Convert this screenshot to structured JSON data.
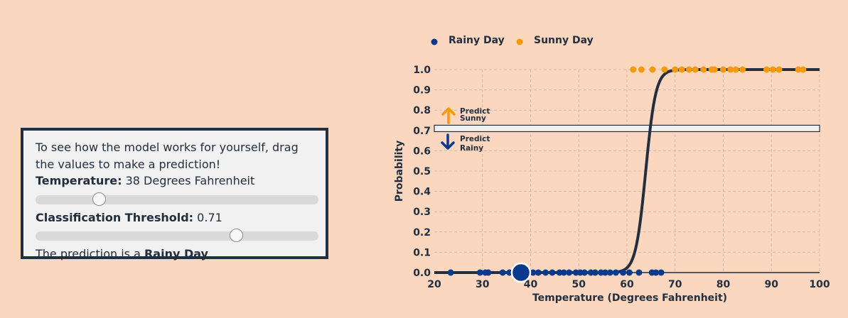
{
  "panel": {
    "intro": "To see how the model works for yourself, drag the values to make a prediction!",
    "temperature_label": "Temperature:",
    "temperature_value": "38 Degrees Fahrenheit",
    "temperature_slider": {
      "min": 20,
      "max": 100,
      "value": 38
    },
    "threshold_label": "Classification Threshold:",
    "threshold_value": "0.71",
    "threshold_slider": {
      "min": 0,
      "max": 1,
      "value": 0.71
    },
    "prediction_prefix": "The prediction is a ",
    "prediction_value": "Rainy Day",
    "prediction_suffix": "."
  },
  "colors": {
    "background": "#fbd7c0",
    "rainy": "#0b3a8c",
    "sunny": "#f7990a",
    "curve": "#232f3e",
    "threshold_band": "#f1f1f1"
  },
  "chart_data": {
    "type": "scatter",
    "xlabel": "Temperature (Degrees Fahrenheit)",
    "ylabel": "Probability",
    "xlim": [
      20,
      100
    ],
    "ylim": [
      0,
      1
    ],
    "x_ticks": [
      20,
      30,
      40,
      50,
      60,
      70,
      80,
      90,
      100
    ],
    "y_ticks": [
      "0.0",
      "0.1",
      "0.2",
      "0.3",
      "0.4",
      "0.5",
      "0.6",
      "0.7",
      "0.8",
      "0.9",
      "1.0"
    ],
    "grid": true,
    "legend_position": "top-left",
    "series": [
      {
        "name": "Rainy Day",
        "color": "#0b3a8c",
        "y": 0,
        "x": [
          23.4,
          29.5,
          30.6,
          31.2,
          34.2,
          35.6,
          37.0,
          40.5,
          41.6,
          43.1,
          44.5,
          46.0,
          46.9,
          48.0,
          49.4,
          50.3,
          51.2,
          52.5,
          53.4,
          54.6,
          55.5,
          56.5,
          57.7,
          59.2,
          60.5,
          62.5,
          65.2,
          66.0,
          67.1
        ]
      },
      {
        "name": "Sunny Day",
        "color": "#f7990a",
        "y": 1,
        "x": [
          61.3,
          63.0,
          65.3,
          67.8,
          70.0,
          71.4,
          72.9,
          74.2,
          75.9,
          77.6,
          78.2,
          80.0,
          81.5,
          82.6,
          84.0,
          89.0,
          90.3,
          91.6,
          95.6,
          96.6
        ]
      }
    ],
    "logistic_curve": {
      "midpoint": 63.9,
      "steepness": 0.96
    },
    "threshold": 0.71,
    "current_point": {
      "x": 38,
      "y": 0
    },
    "annotations": [
      {
        "text_line1": "Predict",
        "text_line2": "Sunny",
        "direction": "up",
        "color": "#f7990a"
      },
      {
        "text_line1": "Predict",
        "text_line2": "Rainy",
        "direction": "down",
        "color": "#0b3a8c"
      }
    ]
  }
}
